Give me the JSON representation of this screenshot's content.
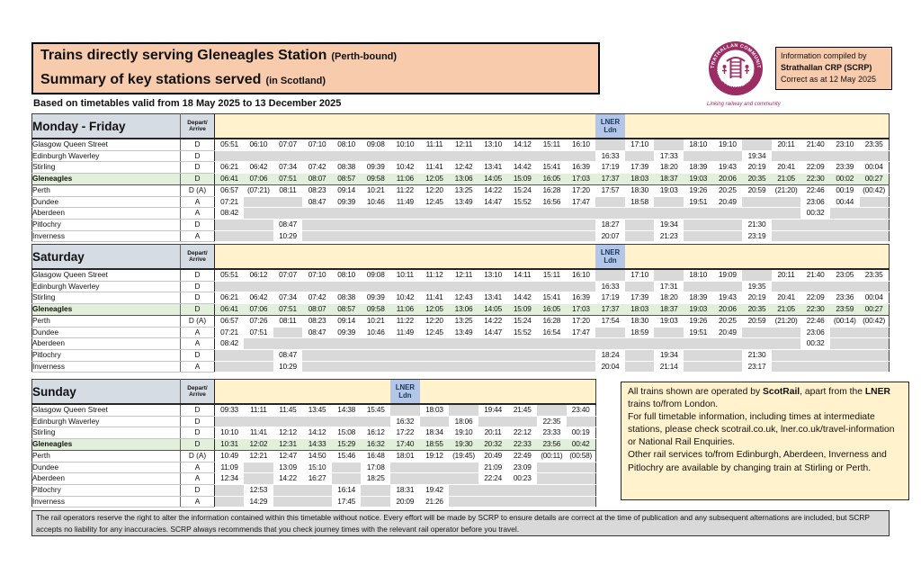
{
  "header": {
    "title_main": "Trains directly serving Gleneagles Station",
    "title_main_suffix": "(Perth-bound)",
    "title_sub": "Summary of key stations served",
    "title_sub_suffix": "(in Scotland)",
    "validity": "Based on timetables valid from 18 May 2025 to 13 December 2025",
    "logo_text_top": "STRATHALLAN COMMUNITY",
    "logo_text_bottom": "RAIL PARTNERSHIP",
    "logo_caption": "Linking railway and community",
    "info_box": {
      "line1": "Information compiled by",
      "line2": "Strathallan CRP (SCRP)",
      "line3": "Correct as at 12 May 2025"
    }
  },
  "colors": {
    "peach": "#F8CBAD",
    "yellow_band": "#FFF2CC",
    "day_header_blue": "#D6DCE4",
    "lner_blue": "#B4C6E7",
    "gleneagles_green": "#E2EFDA",
    "empty_gray": "#D9D9D9",
    "logo_magenta": "#9C2D64"
  },
  "table_meta": {
    "da_header_line1": "Depart/",
    "da_header_line2": "Arrive",
    "lner_line1": "LNER",
    "lner_line2": "Ldn"
  },
  "tables": [
    {
      "id": "monday-friday",
      "title": "Monday - Friday",
      "cols": 23,
      "lner_col": 13,
      "rows": [
        {
          "station": "Glasgow Queen Street",
          "da": "D",
          "times": [
            "05:51",
            "06:10",
            "07:07",
            "07:10",
            "08:10",
            "09:08",
            "10:10",
            "11:11",
            "12:11",
            "13:10",
            "14:12",
            "15:11",
            "16:10",
            "",
            "17:10",
            "",
            "18:10",
            "19:10",
            "",
            "20:11",
            "21:40",
            "23:10",
            "23:35"
          ]
        },
        {
          "station": "Edinburgh Waverley",
          "da": "D",
          "times": [
            "",
            "",
            "",
            "",
            "",
            "",
            "",
            "",
            "",
            "",
            "",
            "",
            "",
            "16:33",
            "",
            "17:33",
            "",
            "",
            "19:34",
            "",
            "",
            "",
            ""
          ]
        },
        {
          "station": "Stirling",
          "da": "D",
          "times": [
            "06:21",
            "06:42",
            "07:34",
            "07:42",
            "08:38",
            "09:39",
            "10:42",
            "11:41",
            "12:42",
            "13:41",
            "14:42",
            "15:41",
            "16:39",
            "17:19",
            "17:39",
            "18:20",
            "18:39",
            "19:43",
            "20:19",
            "20:41",
            "22:09",
            "23:39",
            "00:04"
          ]
        },
        {
          "station": "Gleneagles",
          "da": "D",
          "highlight": true,
          "times": [
            "06:41",
            "07:06",
            "07:51",
            "08:07",
            "08:57",
            "09:58",
            "11:06",
            "12:05",
            "13:06",
            "14:05",
            "15:09",
            "16:05",
            "17:03",
            "17:37",
            "18:03",
            "18:37",
            "19:03",
            "20:06",
            "20:35",
            "21:05",
            "22:30",
            "00:02",
            "00:27"
          ]
        },
        {
          "station": "Perth",
          "da": "D (A)",
          "times": [
            "06:57",
            "(07:21)",
            "08:11",
            "08:23",
            "09:14",
            "10:21",
            "11:22",
            "12:20",
            "13:25",
            "14:22",
            "15:24",
            "16:28",
            "17:20",
            "17:57",
            "18:30",
            "19:03",
            "19:26",
            "20:25",
            "20:59",
            "(21:20)",
            "22:46",
            "00:19",
            "(00:42)"
          ]
        },
        {
          "station": "Dundee",
          "da": "A",
          "times": [
            "07:21",
            "",
            "",
            "08:47",
            "09:39",
            "10:46",
            "11:49",
            "12:45",
            "13:49",
            "14:47",
            "15:52",
            "16:56",
            "17:47",
            "",
            "18:58",
            "",
            "19:51",
            "20:49",
            "",
            "",
            "23:06",
            "00:44",
            ""
          ]
        },
        {
          "station": "Aberdeen",
          "da": "A",
          "group_start": true,
          "times": [
            "08:42",
            "",
            "",
            "",
            "",
            "",
            "",
            "",
            "",
            "",
            "",
            "",
            "",
            "",
            "",
            "",
            "",
            "",
            "",
            "",
            "00:32",
            "",
            ""
          ]
        },
        {
          "station": "Pitlochry",
          "da": "D",
          "times": [
            "",
            "",
            "08:47",
            "",
            "",
            "",
            "",
            "",
            "",
            "",
            "",
            "",
            "",
            "18:27",
            "",
            "19:34",
            "",
            "",
            "21:30",
            "",
            "",
            "",
            ""
          ]
        },
        {
          "station": "Inverness",
          "da": "A",
          "times": [
            "",
            "",
            "10:29",
            "",
            "",
            "",
            "",
            "",
            "",
            "",
            "",
            "",
            "",
            "20:07",
            "",
            "21:23",
            "",
            "",
            "23:19",
            "",
            "",
            "",
            ""
          ]
        }
      ]
    },
    {
      "id": "saturday",
      "title": "Saturday",
      "cols": 23,
      "lner_col": 13,
      "rows": [
        {
          "station": "Glasgow Queen Street",
          "da": "D",
          "times": [
            "05:51",
            "06:12",
            "07:07",
            "07:10",
            "08:10",
            "09:08",
            "10:11",
            "11:12",
            "12:11",
            "13:10",
            "14:11",
            "15:11",
            "16:10",
            "",
            "17:10",
            "",
            "18:10",
            "19:09",
            "",
            "20:11",
            "21:40",
            "23:05",
            "23:35"
          ]
        },
        {
          "station": "Edinburgh Waverley",
          "da": "D",
          "times": [
            "",
            "",
            "",
            "",
            "",
            "",
            "",
            "",
            "",
            "",
            "",
            "",
            "",
            "16:33",
            "",
            "17:31",
            "",
            "",
            "19:35",
            "",
            "",
            "",
            ""
          ]
        },
        {
          "station": "Stirling",
          "da": "D",
          "times": [
            "06:21",
            "06:42",
            "07:34",
            "07:42",
            "08:38",
            "09:39",
            "10:42",
            "11:41",
            "12:43",
            "13:41",
            "14:42",
            "15:41",
            "16:39",
            "17:19",
            "17:39",
            "18:20",
            "18:39",
            "19:43",
            "20:19",
            "20:41",
            "22:09",
            "23:36",
            "00:04"
          ]
        },
        {
          "station": "Gleneagles",
          "da": "D",
          "highlight": true,
          "times": [
            "06:41",
            "07:06",
            "07:51",
            "08:07",
            "08:57",
            "09:58",
            "11:06",
            "12:05",
            "13:06",
            "14:05",
            "15:09",
            "16:05",
            "17:03",
            "17:37",
            "18:03",
            "18:37",
            "19:03",
            "20:06",
            "20:35",
            "21:05",
            "22:30",
            "23:59",
            "00:27"
          ]
        },
        {
          "station": "Perth",
          "da": "D (A)",
          "times": [
            "06:57",
            "07:26",
            "08:11",
            "08:23",
            "09:14",
            "10:21",
            "11:22",
            "12:20",
            "13:25",
            "14:22",
            "15:24",
            "16:28",
            "17:20",
            "17:54",
            "18:30",
            "19:03",
            "19:26",
            "20:25",
            "20:59",
            "(21:20)",
            "22:46",
            "(00:14)",
            "(00:42)"
          ]
        },
        {
          "station": "Dundee",
          "da": "A",
          "times": [
            "07:21",
            "07:51",
            "",
            "08:47",
            "09:39",
            "10:46",
            "11:49",
            "12:45",
            "13:49",
            "14:47",
            "15:52",
            "16:54",
            "17:47",
            "",
            "18:59",
            "",
            "19:51",
            "20:49",
            "",
            "",
            "23:06",
            "",
            ""
          ]
        },
        {
          "station": "Aberdeen",
          "da": "A",
          "group_start": true,
          "times": [
            "08:42",
            "",
            "",
            "",
            "",
            "",
            "",
            "",
            "",
            "",
            "",
            "",
            "",
            "",
            "",
            "",
            "",
            "",
            "",
            "",
            "00:32",
            "",
            ""
          ]
        },
        {
          "station": "Pitlochry",
          "da": "D",
          "times": [
            "",
            "",
            "08:47",
            "",
            "",
            "",
            "",
            "",
            "",
            "",
            "",
            "",
            "",
            "18:24",
            "",
            "19:34",
            "",
            "",
            "21:30",
            "",
            "",
            "",
            ""
          ]
        },
        {
          "station": "Inverness",
          "da": "A",
          "times": [
            "",
            "",
            "10:29",
            "",
            "",
            "",
            "",
            "",
            "",
            "",
            "",
            "",
            "",
            "20:04",
            "",
            "21:14",
            "",
            "",
            "23:17",
            "",
            "",
            "",
            ""
          ]
        }
      ]
    },
    {
      "id": "sunday",
      "title": "Sunday",
      "cols": 13,
      "lner_col": 6,
      "rows": [
        {
          "station": "Glasgow Queen Street",
          "da": "D",
          "times": [
            "09:33",
            "11:11",
            "11:45",
            "13:45",
            "14:38",
            "15:45",
            "",
            "18:03",
            "",
            "19:44",
            "21:45",
            "",
            "23:40"
          ]
        },
        {
          "station": "Edinburgh Waverley",
          "da": "D",
          "times": [
            "",
            "",
            "",
            "",
            "",
            "",
            "16:32",
            "",
            "18:06",
            "",
            "",
            "22:35",
            ""
          ]
        },
        {
          "station": "Stirling",
          "da": "D",
          "times": [
            "10:10",
            "11:41",
            "12:12",
            "14:12",
            "15:08",
            "16:12",
            "17:22",
            "18:34",
            "19:10",
            "20:11",
            "22:12",
            "23:33",
            "00:19"
          ]
        },
        {
          "station": "Gleneagles",
          "da": "D",
          "highlight": true,
          "times": [
            "10:31",
            "12:02",
            "12:31",
            "14:33",
            "15:29",
            "16:32",
            "17:40",
            "18:55",
            "19:30",
            "20:32",
            "22:33",
            "23:56",
            "00:42"
          ]
        },
        {
          "station": "Perth",
          "da": "D (A)",
          "times": [
            "10:49",
            "12:21",
            "12:47",
            "14:50",
            "15:46",
            "16:48",
            "18:01",
            "19:12",
            "(19:45)",
            "20:49",
            "22:49",
            "(00:11)",
            "(00:58)"
          ]
        },
        {
          "station": "Dundee",
          "da": "A",
          "times": [
            "11:09",
            "",
            "13:09",
            "15:10",
            "",
            "17:08",
            "",
            "",
            "",
            "21:09",
            "23:09",
            "",
            ""
          ]
        },
        {
          "station": "Aberdeen",
          "da": "A",
          "group_start": true,
          "times": [
            "12:34",
            "",
            "14:22",
            "16:27",
            "",
            "18:25",
            "",
            "",
            "",
            "22:24",
            "00:23",
            "",
            ""
          ]
        },
        {
          "station": "Pitlochry",
          "da": "D",
          "times": [
            "",
            "12:53",
            "",
            "",
            "16:14",
            "",
            "18:31",
            "19:42",
            "",
            "",
            "",
            "",
            ""
          ]
        },
        {
          "station": "Inverness",
          "da": "A",
          "times": [
            "",
            "14:29",
            "",
            "",
            "17:45",
            "",
            "20:09",
            "21:26",
            "",
            "",
            "",
            "",
            ""
          ]
        }
      ]
    }
  ],
  "note": {
    "p1": [
      {
        "t": "All trains shown are operated by "
      },
      {
        "t": "ScotRail"
      },
      {
        "t": ", apart from the "
      },
      {
        "t": "LNER"
      },
      {
        "t": " trains to/from London."
      }
    ],
    "p2": "For full timetable information, including times at intermediate stations, please check scotrail.co.uk, lner.co.uk/travel-information or National Rail Enquiries.",
    "p3": "Other rail services to/from Edinburgh, Aberdeen, Inverness and Pitlochry are available by changing train at Stirling or Perth."
  },
  "disclaimer": "The rail operators reserve the right to alter the information contained within this timetable without notice. Every effort will be made by SCRP to ensure details are correct at the time of publication and any subsequent alternations are included, but SCRP accepts no liability for any inaccuracies.  SCRP always recommends that you check journey times with the relevant rail operator before you travel."
}
